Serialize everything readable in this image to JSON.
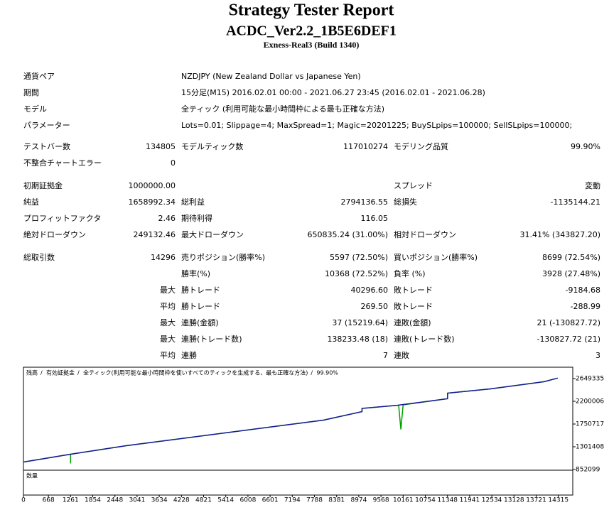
{
  "header": {
    "title": "Strategy Tester Report",
    "subtitle": "ACDC_Ver2.2_1B5E6DEF1",
    "server": "Exness-Real3 (Build 1340)"
  },
  "rows": [
    [
      "通貨ペア",
      null,
      "NZDJPY (New Zealand Dollar vs Japanese Yen)",
      null,
      null,
      null
    ],
    [
      "期間",
      null,
      "15分足(M15) 2016.02.01 00:00 - 2021.06.27 23:45 (2016.02.01 - 2021.06.28)",
      null,
      null,
      null
    ],
    [
      "モデル",
      null,
      "全ティック (利用可能な最小時間枠による最も正確な方法)",
      null,
      null,
      null
    ],
    [
      "パラメーター",
      null,
      "Lots=0.01; Slippage=4; MaxSpread=1; Magic=20201225; BuySLpips=100000; SellSLpips=100000;",
      null,
      null,
      null
    ],
    [
      "テストバー数",
      "134805",
      "モデルティック数",
      "117010274",
      "モデリング品質",
      "99.90%"
    ],
    [
      "不整合チャートエラー",
      "0",
      null,
      null,
      null,
      null
    ],
    [
      "初期証拠金",
      "1000000.00",
      null,
      null,
      "スプレッド",
      "変動"
    ],
    [
      "純益",
      "1658992.34",
      "総利益",
      "2794136.55",
      "総損失",
      "-1135144.21"
    ],
    [
      "プロフィットファクタ",
      "2.46",
      "期待利得",
      "116.05",
      null,
      null
    ],
    [
      "絶対ドローダウン",
      "249132.46",
      "最大ドローダウン",
      "650835.24 (31.00%)",
      "相対ドローダウン",
      "31.41% (343827.20)"
    ],
    [
      "総取引数",
      "14296",
      "売りポジション(勝率%)",
      "5597 (72.50%)",
      "買いポジション(勝率%)",
      "8699 (72.54%)"
    ],
    [
      null,
      null,
      "勝率(%)",
      "10368 (72.52%)",
      "負率 (%)",
      "3928 (27.48%)"
    ],
    [
      null,
      "最大",
      "勝トレード",
      "40296.60",
      "敗トレード",
      "-9184.68"
    ],
    [
      null,
      "平均",
      "勝トレード",
      "269.50",
      "敗トレード",
      "-288.99"
    ],
    [
      null,
      "最大",
      "連勝(金額)",
      "37 (15219.64)",
      "連敗(金額)",
      "21 (-130827.72)"
    ],
    [
      null,
      "最大",
      "連勝(トレード数)",
      "138233.48 (18)",
      "連敗(トレード数)",
      "-130827.72 (21)"
    ],
    [
      null,
      "平均",
      "連勝",
      "7",
      "連敗",
      "3"
    ]
  ],
  "chart": {
    "type": "line",
    "legend": [
      "残高",
      "有効証拠金",
      "全ティック(利用可能な最小時間枠を使いすべてのティックを生成する、最も正確な方法)",
      "99.90%"
    ],
    "volume_label": "数量",
    "series": [
      {
        "name": "有効証拠金",
        "color": "#00a000",
        "x": [
          0,
          1260,
          1261,
          1262,
          2750,
          8030,
          9060,
          9061,
          10040,
          10100,
          10160,
          11350,
          11351,
          12500,
          13935,
          14296
        ],
        "values": [
          1000000,
          1154000,
          972000,
          1154000,
          1323000,
          1828000,
          1997000,
          2060000,
          2123000,
          1646000,
          2130000,
          2250000,
          2362000,
          2446000,
          2587000,
          2658992
        ]
      },
      {
        "name": "残高",
        "color": "#1a1a9a",
        "x": [
          0,
          1261,
          2750,
          8030,
          9060,
          9061,
          10020,
          11350,
          11351,
          12500,
          13935,
          14296
        ],
        "values": [
          1000000,
          1154000,
          1323000,
          1828000,
          1997000,
          2060000,
          2123000,
          2250000,
          2362000,
          2446000,
          2587000,
          2658992
        ]
      }
    ],
    "xlim": [
      0,
      14700
    ],
    "ylim": [
      838000,
      2874000
    ],
    "yticks": [
      852099,
      1301408,
      1750717,
      2200006,
      2649335
    ],
    "xticks": [
      0,
      668,
      1261,
      1854,
      2448,
      3041,
      3634,
      4228,
      4821,
      5414,
      6008,
      6601,
      7194,
      7788,
      8381,
      8974,
      9568,
      10161,
      10754,
      11348,
      11941,
      12534,
      13128,
      13721,
      14315
    ]
  }
}
